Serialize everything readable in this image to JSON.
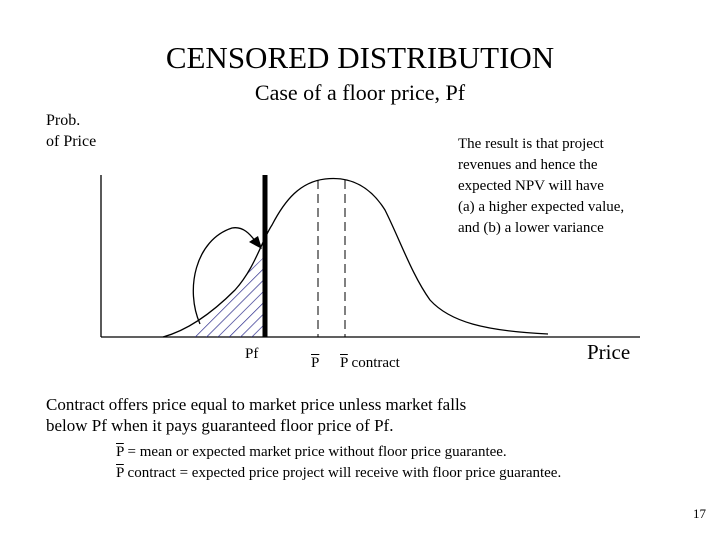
{
  "title": "CENSORED DISTRIBUTION",
  "subtitle": "Case of a floor price, Pf",
  "y_axis_label_line1": "Prob.",
  "y_axis_label_line2": "of Price",
  "note_lines": [
    "The result is that project",
    "revenues and hence the",
    "expected NPV will have",
    "(a) a higher expected value,",
    "and (b) a lower variance"
  ],
  "labels": {
    "floor": "Pf",
    "mean": "P",
    "contract_symbol": "P",
    "contract_word": " contract",
    "x_axis": "Price"
  },
  "body_line1": "Contract offers price equal to market price unless market falls",
  "body_line2": "below Pf when it pays guaranteed floor price of Pf.",
  "definitions": [
    {
      "symbol": "P",
      "text": " = mean or expected market price without floor price guarantee."
    },
    {
      "symbol": "P",
      "text": " contract = expected price project will receive with floor price guarantee."
    }
  ],
  "page_number": "17",
  "colors": {
    "hatch": "#2b2b8c",
    "ink": "#000000"
  }
}
